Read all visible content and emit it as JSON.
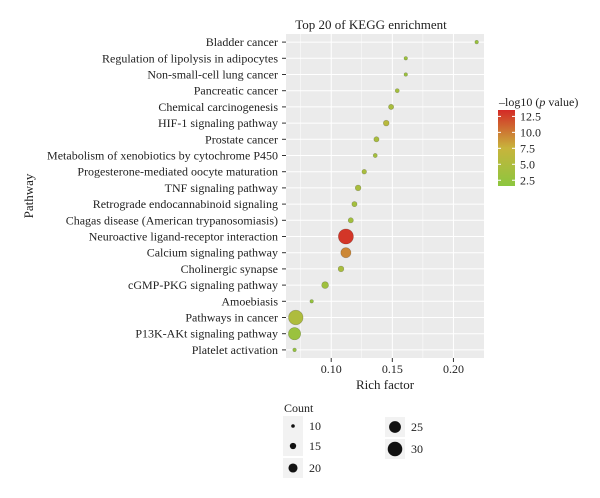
{
  "chart_data": {
    "type": "scatter",
    "title": "Top 20 of KEGG enrichment",
    "xlabel": "Rich factor",
    "ylabel": "Pathway",
    "xlim": [
      0.063,
      0.225
    ],
    "xticks": [
      "0.10",
      "0.15",
      "0.20"
    ],
    "xtick_values": [
      0.1,
      0.15,
      0.2
    ],
    "grid": true,
    "categories": [
      "Bladder cancer",
      "Regulation of lipolysis in adipocytes",
      "Non-small-cell lung cancer",
      "Pancreatic cancer",
      "Chemical carcinogenesis",
      "HIF-1 signaling pathway",
      "Prostate cancer",
      "Metabolism of xenobiotics by cytochrome P450",
      "Progesterone-mediated oocyte maturation",
      "TNF signaling pathway",
      "Retrograde endocannabinoid signaling",
      "Chagas disease (American trypanosomiasis)",
      "Neuroactive ligand-receptor interaction",
      "Calcium signaling pathway",
      "Cholinergic synapse",
      "cGMP-PKG signaling pathway",
      "Amoebiasis",
      "Pathways in cancer",
      "P13K-AKt signaling pathway",
      "Platelet activation"
    ],
    "points": [
      {
        "pathway": "Bladder cancer",
        "rich_factor": 0.219,
        "count": 10,
        "neg_log10_p": 3.0
      },
      {
        "pathway": "Regulation of lipolysis in adipocytes",
        "rich_factor": 0.161,
        "count": 10,
        "neg_log10_p": 3.2
      },
      {
        "pathway": "Non-small-cell lung cancer",
        "rich_factor": 0.161,
        "count": 10,
        "neg_log10_p": 3.2
      },
      {
        "pathway": "Pancreatic cancer",
        "rich_factor": 0.154,
        "count": 11,
        "neg_log10_p": 4.0
      },
      {
        "pathway": "Chemical carcinogenesis",
        "rich_factor": 0.149,
        "count": 13,
        "neg_log10_p": 4.5
      },
      {
        "pathway": "HIF-1 signaling pathway",
        "rich_factor": 0.145,
        "count": 14,
        "neg_log10_p": 6.0
      },
      {
        "pathway": "Prostate cancer",
        "rich_factor": 0.137,
        "count": 13,
        "neg_log10_p": 4.5
      },
      {
        "pathway": "Metabolism of xenobiotics by cytochrome P450",
        "rich_factor": 0.136,
        "count": 11,
        "neg_log10_p": 4.0
      },
      {
        "pathway": "Progesterone-mediated oocyte maturation",
        "rich_factor": 0.127,
        "count": 12,
        "neg_log10_p": 4.5
      },
      {
        "pathway": "TNF signaling pathway",
        "rich_factor": 0.122,
        "count": 14,
        "neg_log10_p": 4.5
      },
      {
        "pathway": "Retrograde endocannabinoid signaling",
        "rich_factor": 0.119,
        "count": 13,
        "neg_log10_p": 4.0
      },
      {
        "pathway": "Chagas disease (American trypanosomiasis)",
        "rich_factor": 0.116,
        "count": 13,
        "neg_log10_p": 3.8
      },
      {
        "pathway": "Neuroactive ligand-receptor interaction",
        "rich_factor": 0.112,
        "count": 31,
        "neg_log10_p": 13.0
      },
      {
        "pathway": "Calcium signaling pathway",
        "rich_factor": 0.112,
        "count": 22,
        "neg_log10_p": 9.5
      },
      {
        "pathway": "Cholinergic synapse",
        "rich_factor": 0.108,
        "count": 14,
        "neg_log10_p": 4.5
      },
      {
        "pathway": "cGMP-PKG signaling pathway",
        "rich_factor": 0.095,
        "count": 16,
        "neg_log10_p": 3.5
      },
      {
        "pathway": "Amoebiasis",
        "rich_factor": 0.084,
        "count": 10,
        "neg_log10_p": 2.5
      },
      {
        "pathway": "Pathways in cancer",
        "rich_factor": 0.071,
        "count": 30,
        "neg_log10_p": 5.0
      },
      {
        "pathway": "P13K-AKt signaling pathway",
        "rich_factor": 0.07,
        "count": 26,
        "neg_log10_p": 3.0
      },
      {
        "pathway": "Platelet activation",
        "rich_factor": 0.07,
        "count": 10,
        "neg_log10_p": 2.5
      }
    ],
    "color_legend": {
      "title_prefix": "–log10 (",
      "title_italic": "p",
      "title_suffix": " value)",
      "min": 1.6,
      "max": 13.5,
      "ticks": [
        12.5,
        10.0,
        7.5,
        5.0,
        2.5
      ],
      "tick_labels": [
        "12.5",
        "10.0",
        "7.5",
        "5.0",
        "2.5"
      ],
      "low_color": "#8cc63f",
      "mid_color": "#c8b43c",
      "high_color": "#d42a26",
      "placement": "right"
    },
    "size_legend": {
      "title": "Count",
      "entries": [
        {
          "value": 10,
          "label": "10"
        },
        {
          "value": 15,
          "label": "15"
        },
        {
          "value": 20,
          "label": "20"
        },
        {
          "value": 25,
          "label": "25"
        },
        {
          "value": 30,
          "label": "30"
        }
      ],
      "placement": "bottom"
    },
    "colors": {
      "panel_background": "#ebebeb",
      "grid": "#ffffff",
      "text": "#222222",
      "tick_mark": "#333333"
    }
  }
}
